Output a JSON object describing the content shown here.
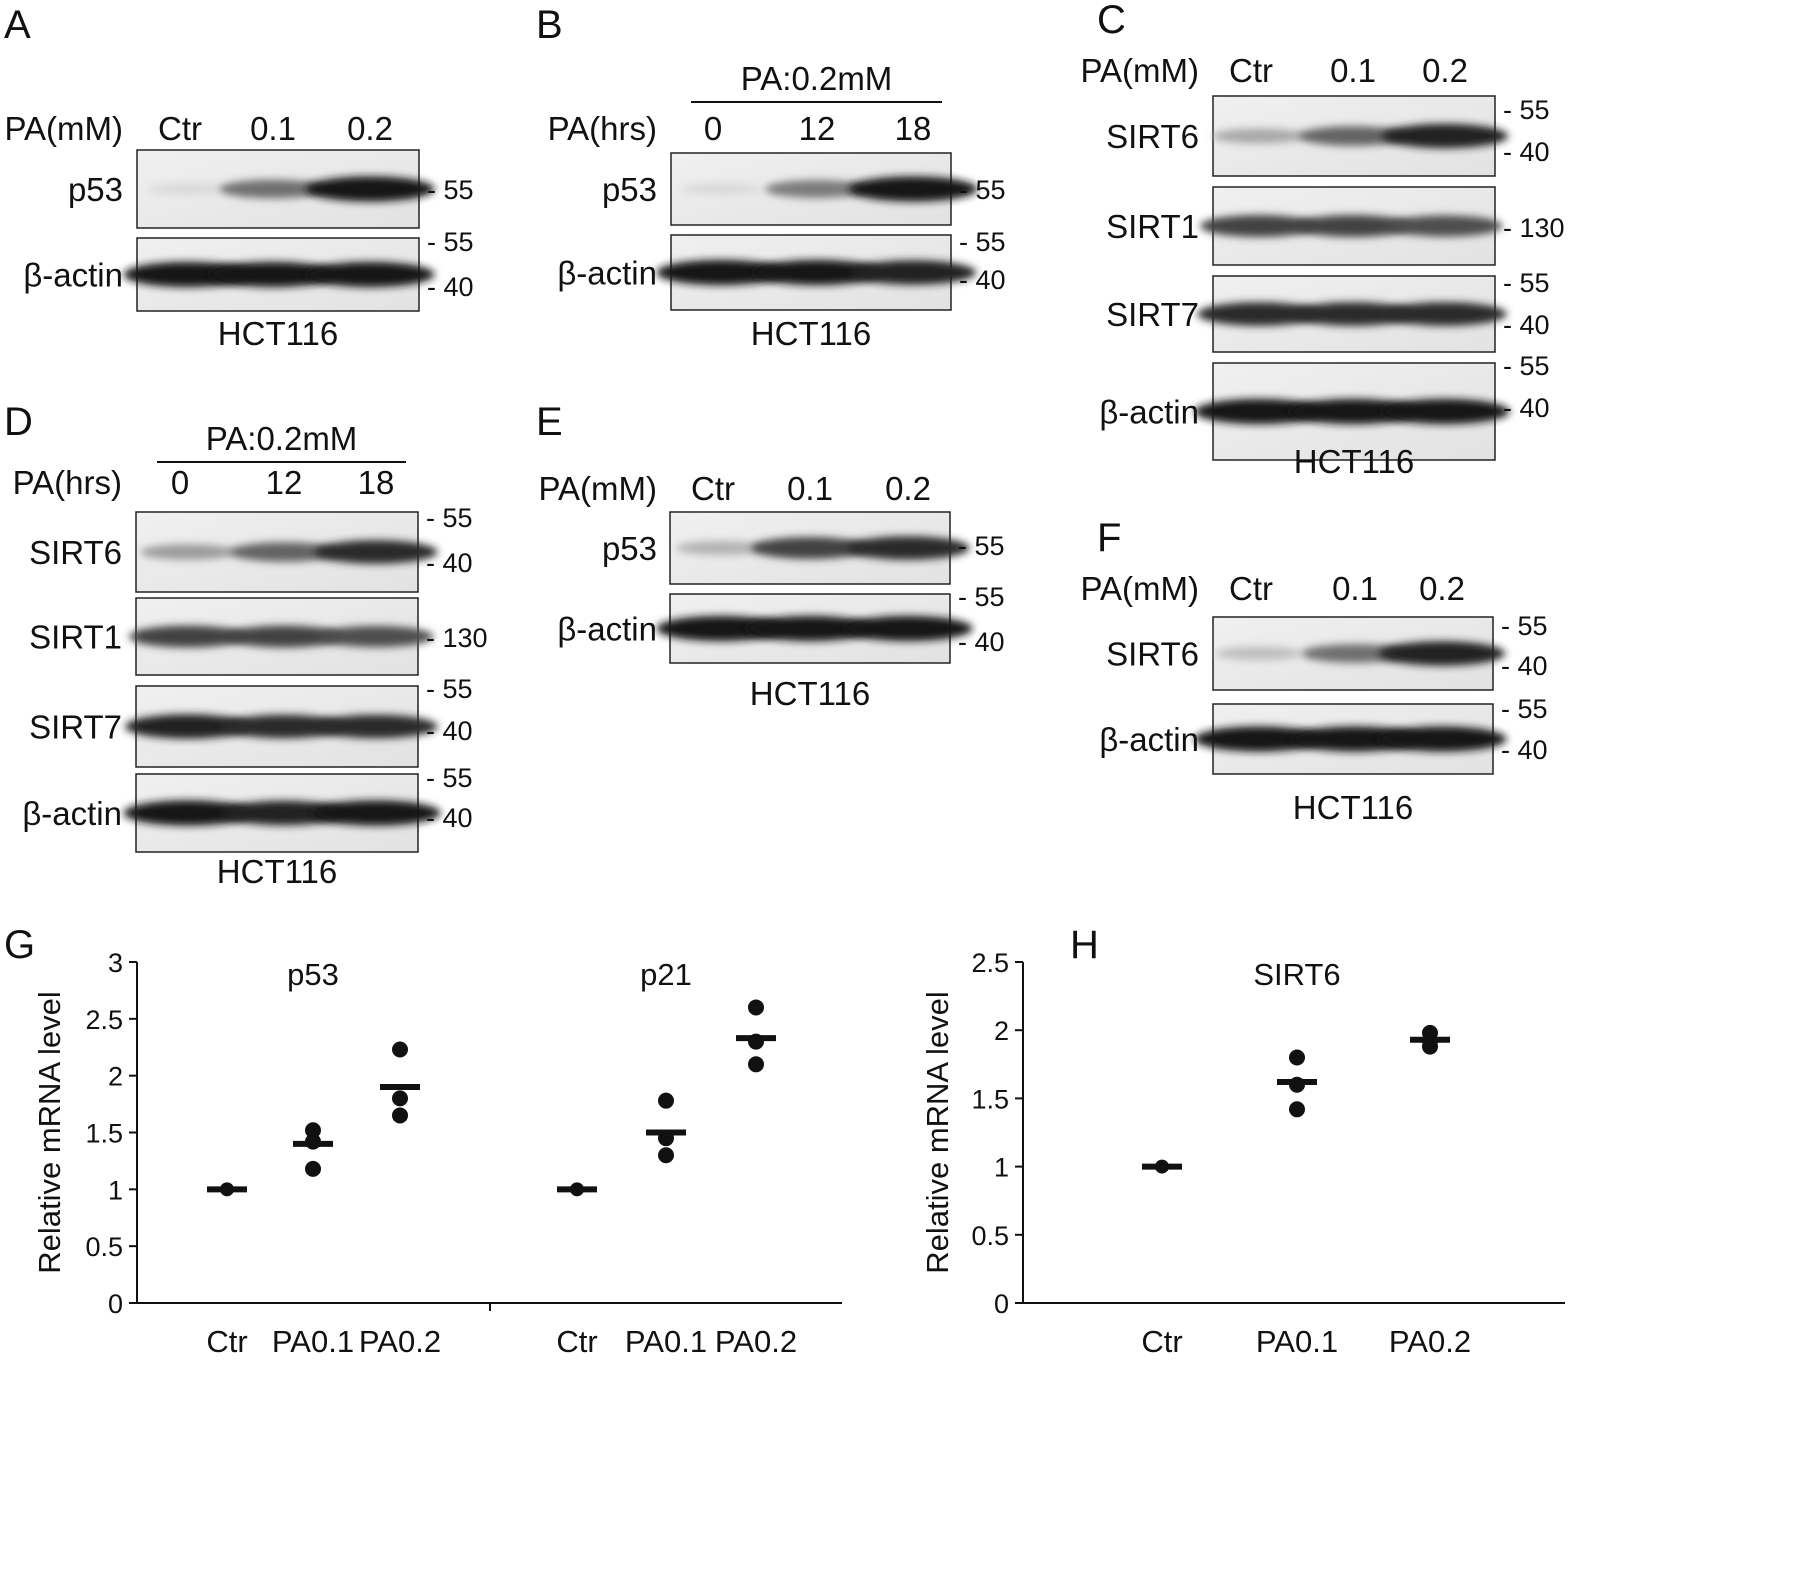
{
  "figure": {
    "panels": {
      "A": {
        "letter": "A",
        "group_label": "",
        "row_label": "PA(mM)",
        "lanes": [
          "Ctr",
          "0.1",
          "0.2"
        ],
        "blots": [
          {
            "protein": "p53",
            "markers": [
              "55"
            ],
            "intensity": [
              0.08,
              0.55,
              0.95
            ]
          },
          {
            "protein": "β-actin",
            "markers": [
              "55",
              "40"
            ],
            "intensity": [
              0.95,
              0.95,
              0.95
            ]
          }
        ],
        "cell_line": "HCT116"
      },
      "B": {
        "letter": "B",
        "group_label": "PA:0.2mM",
        "row_label": "PA(hrs)",
        "lanes": [
          "0",
          "12",
          "18"
        ],
        "blots": [
          {
            "protein": "p53",
            "markers": [
              "55"
            ],
            "intensity": [
              0.08,
              0.5,
              0.95
            ]
          },
          {
            "protein": "β-actin",
            "markers": [
              "55",
              "40"
            ],
            "intensity": [
              0.95,
              0.95,
              0.9
            ]
          }
        ],
        "cell_line": "HCT116"
      },
      "C": {
        "letter": "C",
        "group_label": "",
        "row_label": "PA(mM)",
        "lanes": [
          "Ctr",
          "0.1",
          "0.2"
        ],
        "blots": [
          {
            "protein": "SIRT6",
            "markers": [
              "55",
              "40"
            ],
            "intensity": [
              0.3,
              0.6,
              0.9
            ]
          },
          {
            "protein": "SIRT1",
            "markers": [
              "130"
            ],
            "intensity": [
              0.75,
              0.75,
              0.7
            ]
          },
          {
            "protein": "SIRT7",
            "markers": [
              "55",
              "40"
            ],
            "intensity": [
              0.85,
              0.85,
              0.85
            ]
          },
          {
            "protein": "β-actin",
            "markers": [
              "55",
              "40"
            ],
            "intensity": [
              0.95,
              0.95,
              0.95
            ]
          }
        ],
        "cell_line": "HCT116"
      },
      "D": {
        "letter": "D",
        "group_label": "PA:0.2mM",
        "row_label": "PA(hrs)",
        "lanes": [
          "0",
          "12",
          "18"
        ],
        "blots": [
          {
            "protein": "SIRT6",
            "markers": [
              "55",
              "40"
            ],
            "intensity": [
              0.35,
              0.6,
              0.85
            ]
          },
          {
            "protein": "SIRT1",
            "markers": [
              "130"
            ],
            "intensity": [
              0.75,
              0.75,
              0.7
            ]
          },
          {
            "protein": "SIRT7",
            "markers": [
              "55",
              "40"
            ],
            "intensity": [
              0.9,
              0.85,
              0.85
            ]
          },
          {
            "protein": "β-actin",
            "markers": [
              "55",
              "40"
            ],
            "intensity": [
              0.95,
              0.9,
              0.95
            ]
          }
        ],
        "cell_line": "HCT116"
      },
      "E": {
        "letter": "E",
        "group_label": "",
        "row_label": "PA(mM)",
        "lanes": [
          "Ctr",
          "0.1",
          "0.2"
        ],
        "blots": [
          {
            "protein": "p53",
            "markers": [
              "55"
            ],
            "intensity": [
              0.25,
              0.75,
              0.85
            ]
          },
          {
            "protein": "β-actin",
            "markers": [
              "55",
              "40"
            ],
            "intensity": [
              0.95,
              0.95,
              0.95
            ]
          }
        ],
        "cell_line": "HCT116"
      },
      "F": {
        "letter": "F",
        "group_label": "",
        "row_label": "PA(mM)",
        "lanes": [
          "Ctr",
          "0.1",
          "0.2"
        ],
        "blots": [
          {
            "protein": "SIRT6",
            "markers": [
              "55",
              "40"
            ],
            "intensity": [
              0.2,
              0.55,
              0.9
            ]
          },
          {
            "protein": "β-actin",
            "markers": [
              "55",
              "40"
            ],
            "intensity": [
              0.95,
              0.95,
              0.95
            ]
          }
        ],
        "cell_line": "HCT116"
      }
    }
  },
  "chart_data": [
    {
      "panel": "G",
      "type": "scatter",
      "title": "",
      "ylabel": "Relative mRNA level",
      "ylim": [
        0,
        3
      ],
      "yticks": [
        0,
        0.5,
        1,
        1.5,
        2,
        2.5,
        3
      ],
      "ytick_labels": [
        "0",
        "0.5",
        "1",
        "1.5",
        "2",
        "2.5",
        "3"
      ],
      "groups": [
        {
          "label": "p53",
          "categories": [
            "Ctr",
            "PA0.1",
            "PA0.2"
          ],
          "points": [
            [
              1.0,
              1.0,
              1.0
            ],
            [
              1.18,
              1.42,
              1.52
            ],
            [
              1.65,
              1.8,
              2.23
            ]
          ],
          "means": [
            1.0,
            1.4,
            1.9
          ]
        },
        {
          "label": "p21",
          "categories": [
            "Ctr",
            "PA0.1",
            "PA0.2"
          ],
          "points": [
            [
              1.0,
              1.0,
              1.0
            ],
            [
              1.3,
              1.45,
              1.78
            ],
            [
              2.1,
              2.3,
              2.6
            ]
          ],
          "means": [
            1.0,
            1.5,
            2.33
          ]
        }
      ]
    },
    {
      "panel": "H",
      "type": "scatter",
      "title": "SIRT6",
      "ylabel": "Relative mRNA level",
      "ylim": [
        0,
        2.5
      ],
      "yticks": [
        0,
        0.5,
        1,
        1.5,
        2,
        2.5
      ],
      "ytick_labels": [
        "0",
        "0.5",
        "1",
        "1.5",
        "2",
        "2.5"
      ],
      "groups": [
        {
          "label": "",
          "categories": [
            "Ctr",
            "PA0.1",
            "PA0.2"
          ],
          "points": [
            [
              1.0,
              1.0,
              1.0
            ],
            [
              1.42,
              1.6,
              1.8
            ],
            [
              1.88,
              1.92,
              1.98
            ]
          ],
          "means": [
            1.0,
            1.62,
            1.93
          ]
        }
      ]
    }
  ],
  "chart_letters": {
    "G": "G",
    "H": "H"
  }
}
